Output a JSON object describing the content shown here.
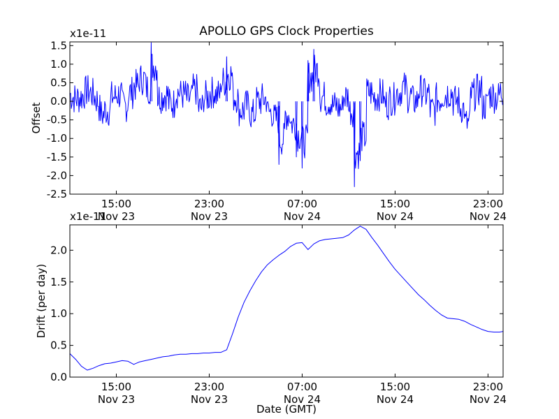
{
  "chart_data": [
    {
      "type": "line",
      "title": "APOLLO GPS Clock Properties",
      "ylabel": "Offset",
      "xlabel": "",
      "y_multiplier_label": "x1e-11",
      "color": "#0000ff",
      "ylim": [
        -2.5,
        1.6
      ],
      "yticks": [
        "-2.5",
        "-2.0",
        "-1.5",
        "-1.0",
        "-0.5",
        "0.0",
        "0.5",
        "1.0",
        "1.5"
      ],
      "xlim_hours": [
        11,
        48.3
      ],
      "xticks": [
        {
          "time": "15:00",
          "date": "Nov 23"
        },
        {
          "time": "23:00",
          "date": "Nov 23"
        },
        {
          "time": "07:00",
          "date": "Nov 24"
        },
        {
          "time": "15:00",
          "date": "Nov 24"
        },
        {
          "time": "23:00",
          "date": "Nov 24"
        }
      ],
      "series": [
        {
          "x": [
            11.0,
            11.5,
            12.0,
            12.5,
            13.0,
            13.4,
            13.7,
            14.0,
            14.5,
            15.0,
            15.5,
            16.0,
            16.5,
            17.0,
            17.5,
            18.0,
            18.5,
            19.0,
            19.5,
            20.0,
            20.5,
            21.0,
            21.5,
            22.0,
            22.5,
            23.0,
            23.5,
            24.0,
            24.5,
            25.0,
            25.5,
            26.0,
            26.5,
            27.0,
            27.5,
            28.0,
            28.5,
            29.0,
            29.5,
            30.0,
            30.5,
            31.0,
            31.5,
            32.0,
            32.5,
            33.0,
            33.5,
            34.0,
            34.5,
            35.0,
            35.5,
            36.0,
            36.5,
            37.0,
            37.5,
            38.0,
            38.5,
            39.0,
            39.5,
            40.0,
            40.5,
            41.0,
            41.5,
            42.0,
            42.5,
            43.0,
            43.5,
            44.0,
            44.5,
            45.0,
            45.5,
            46.0,
            46.5,
            47.0,
            47.5,
            48.0
          ],
          "y": [
            0.3,
            0.1,
            0.2,
            0.5,
            0.3,
            0.0,
            -0.6,
            -0.4,
            0.2,
            0.3,
            -0.2,
            0.4,
            0.7,
            1.0,
            0.6,
            1.6,
            0.2,
            0.3,
            -0.1,
            0.4,
            0.3,
            0.1,
            0.5,
            -0.3,
            0.2,
            0.4,
            0.3,
            0.9,
            1.2,
            0.2,
            -0.4,
            -0.2,
            -0.6,
            0.0,
            0.1,
            -0.5,
            -0.8,
            -1.7,
            -0.6,
            -1.0,
            -1.5,
            -1.8,
            1.1,
            1.4,
            0.2,
            0.0,
            -0.2,
            -0.3,
            0.2,
            -0.4,
            -2.3,
            -1.6,
            0.4,
            0.2,
            0.3,
            -0.1,
            0.1,
            0.4,
            0.6,
            0.2,
            0.0,
            0.5,
            0.3,
            -0.4,
            0.1,
            0.3,
            0.4,
            0.0,
            -0.3,
            -1.0,
            0.3,
            0.5,
            -0.2,
            0.3,
            0.2,
            0.4
          ]
        }
      ]
    },
    {
      "type": "line",
      "title": "",
      "ylabel": "Drift (per day)",
      "xlabel": "Date (GMT)",
      "y_multiplier_label": "x1e-11",
      "color": "#0000ff",
      "ylim": [
        0.0,
        2.4
      ],
      "yticks": [
        "0.0",
        "0.5",
        "1.0",
        "1.5",
        "2.0"
      ],
      "xlim_hours": [
        11,
        48.3
      ],
      "xticks": [
        {
          "time": "15:00",
          "date": "Nov 23"
        },
        {
          "time": "23:00",
          "date": "Nov 23"
        },
        {
          "time": "07:00",
          "date": "Nov 24"
        },
        {
          "time": "15:00",
          "date": "Nov 24"
        },
        {
          "time": "23:00",
          "date": "Nov 24"
        }
      ],
      "series": [
        {
          "x": [
            11.0,
            11.5,
            12.0,
            12.5,
            13.0,
            13.5,
            14.0,
            14.5,
            15.0,
            15.5,
            16.0,
            16.5,
            17.0,
            17.5,
            18.0,
            18.5,
            19.0,
            19.5,
            20.0,
            20.5,
            21.0,
            21.5,
            22.0,
            22.5,
            23.0,
            23.5,
            24.0,
            24.5,
            25.0,
            25.5,
            26.0,
            26.5,
            27.0,
            27.5,
            28.0,
            28.5,
            29.0,
            29.5,
            30.0,
            30.5,
            31.0,
            31.5,
            32.0,
            32.5,
            33.0,
            33.5,
            34.0,
            34.5,
            35.0,
            35.5,
            36.0,
            36.5,
            37.0,
            37.5,
            38.0,
            38.5,
            39.0,
            39.5,
            40.0,
            40.5,
            41.0,
            41.5,
            42.0,
            42.5,
            43.0,
            43.5,
            44.0,
            44.5,
            45.0,
            45.5,
            46.0,
            46.5,
            47.0,
            47.5,
            48.0,
            48.3
          ],
          "y": [
            0.37,
            0.28,
            0.17,
            0.11,
            0.14,
            0.18,
            0.21,
            0.22,
            0.24,
            0.26,
            0.25,
            0.2,
            0.24,
            0.26,
            0.28,
            0.3,
            0.32,
            0.33,
            0.35,
            0.36,
            0.36,
            0.37,
            0.37,
            0.38,
            0.38,
            0.39,
            0.39,
            0.43,
            0.68,
            0.95,
            1.18,
            1.36,
            1.52,
            1.66,
            1.77,
            1.85,
            1.92,
            1.98,
            2.06,
            2.11,
            2.12,
            2.01,
            2.1,
            2.15,
            2.17,
            2.18,
            2.19,
            2.2,
            2.24,
            2.32,
            2.38,
            2.33,
            2.2,
            2.08,
            1.95,
            1.82,
            1.7,
            1.6,
            1.5,
            1.4,
            1.3,
            1.22,
            1.13,
            1.05,
            0.98,
            0.93,
            0.92,
            0.91,
            0.88,
            0.83,
            0.79,
            0.75,
            0.72,
            0.71,
            0.71,
            0.72
          ]
        }
      ]
    }
  ]
}
